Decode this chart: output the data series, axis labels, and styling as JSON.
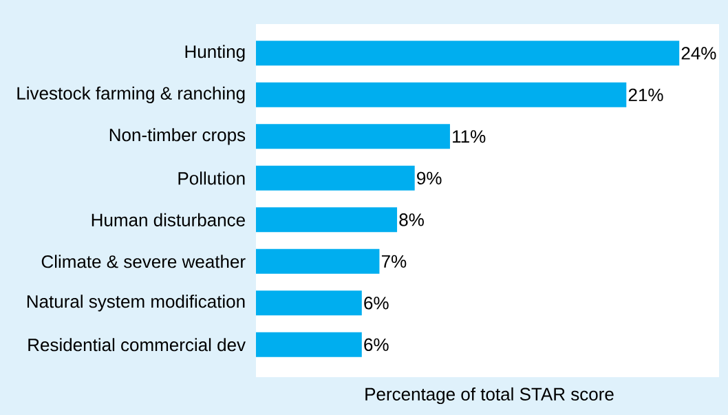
{
  "chart_data": {
    "type": "bar",
    "orientation": "horizontal",
    "xlabel": "Percentage of total STAR score",
    "categories": [
      "Hunting",
      "Livestock farming & ranching",
      "Non-timber crops",
      "Pollution",
      "Human disturbance",
      "Climate & severe weather",
      "Natural system modification",
      "Residential commercial dev"
    ],
    "values": [
      24,
      21,
      11,
      9,
      8,
      7,
      6,
      6
    ],
    "value_labels": [
      "24%",
      "21%",
      "11%",
      "9%",
      "8%",
      "7%",
      "6%",
      "6%"
    ],
    "color": "#00aeef"
  }
}
